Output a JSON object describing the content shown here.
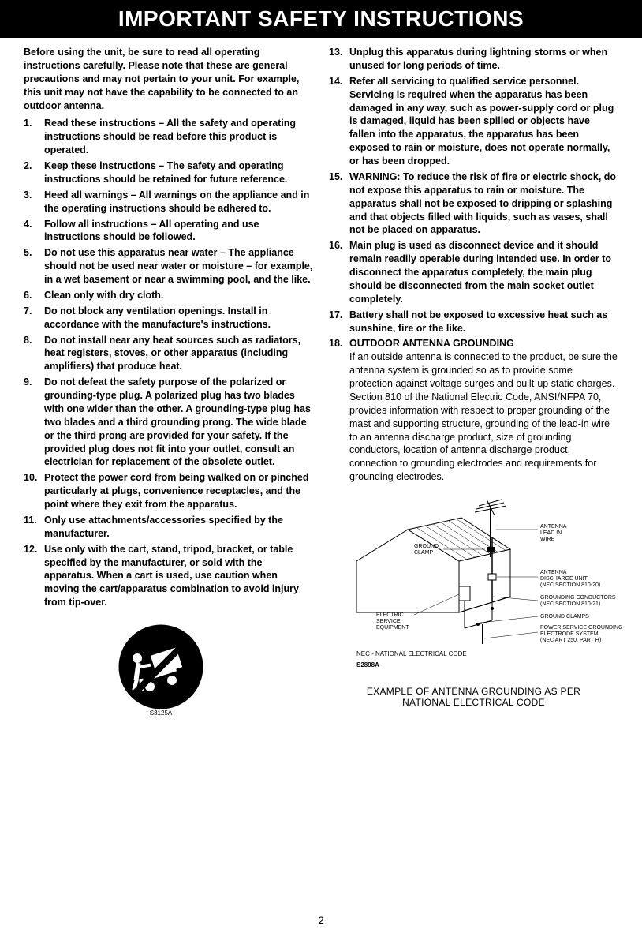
{
  "title": "IMPORTANT SAFETY INSTRUCTIONS",
  "intro": "Before using the unit, be sure to read all operating instructions carefully. Please note that these are general precautions and may not pertain to your unit.  For example, this unit may not have the capability to be connected to an outdoor antenna.",
  "left_items": [
    {
      "n": "1.",
      "t": "Read these instructions – All the safety and operating instructions should be read before this product is operated."
    },
    {
      "n": "2.",
      "t": "Keep these instructions – The safety and operating instructions should be retained for future reference."
    },
    {
      "n": "3.",
      "t": "Heed all warnings – All warnings on the appliance and in the operating instructions should be adhered to."
    },
    {
      "n": "4.",
      "t": "Follow all instructions – All operating and use instructions should be followed."
    },
    {
      "n": "5.",
      "t": "Do not use this apparatus near water – The appliance should not be used near water or moisture – for example, in a wet basement or near a swimming pool, and the like."
    },
    {
      "n": "6.",
      "t": "Clean only with dry cloth."
    },
    {
      "n": "7.",
      "t": "Do not block any ventilation openings. Install in accordance with the manufacture's instructions."
    },
    {
      "n": "8.",
      "t": "Do not install near any heat sources such as radiators, heat registers, stoves, or other apparatus (including amplifiers) that produce heat."
    },
    {
      "n": "9.",
      "t": "Do not defeat the safety purpose of the polarized or grounding-type plug. A polarized plug has two blades with one wider than the other. A grounding-type plug has two blades and a third grounding prong. The wide blade or the third prong are provided for your safety. If the provided plug does not fit into your outlet, consult an electrician for replacement of the obsolete outlet."
    },
    {
      "n": "10.",
      "t": "Protect the power cord from being walked on or pinched particularly at plugs, convenience receptacles, and the point where they exit from the apparatus."
    },
    {
      "n": "11.",
      "t": "Only use attachments/accessories specified by the manufacturer."
    },
    {
      "n": "12.",
      "t": "Use only with the cart, stand, tripod, bracket, or table specified by the manufacturer, or sold with the apparatus. When a cart  is used, use caution when moving the cart/apparatus combination to avoid injury from tip-over."
    }
  ],
  "right_items": [
    {
      "n": "13.",
      "t": "Unplug this apparatus during lightning storms or when unused for long periods of time."
    },
    {
      "n": "14.",
      "t": "Refer all servicing to qualified service personnel. Servicing is required when the apparatus has been damaged in any way, such as power-supply cord or plug is damaged, liquid has been spilled or objects have fallen into the apparatus, the apparatus has been exposed to rain or moisture, does not operate normally, or has been dropped."
    },
    {
      "n": "15.",
      "t": "WARNING:  To reduce the risk of fire or electric shock, do not expose this apparatus to rain or moisture. The apparatus shall not be exposed to dripping or splashing and that objects filled with liquids, such as vases, shall not be placed on apparatus."
    },
    {
      "n": "16.",
      "t": "Main plug is used as disconnect device and it should remain readily operable during intended use. In order to disconnect the apparatus completely, the main plug should be disconnected from the main socket outlet completely."
    },
    {
      "n": "17.",
      "t": "Battery shall not be exposed to excessive heat such as sunshine, fire or the like."
    }
  ],
  "item18": {
    "n": "18.",
    "lead": "OUTDOOR ANTENNA   GROUNDING",
    "body": "If an outside antenna is connected to the product, be sure the antenna system is grounded so as to provide some protection against voltage surges and built-up static charges. Section 810 of the National Electric Code, ANSI/NFPA 70, provides information with respect to proper grounding of the mast and supporting structure, grounding of the lead-in wire to an antenna discharge product, size of grounding conductors, location of antenna discharge product, connection to grounding electrodes and requirements for grounding electrodes."
  },
  "diagram_labels": {
    "antenna_lead": "ANTENNA\nLEAD IN\nWIRE",
    "ground_clamp": "GROUND\nCLAMP",
    "discharge_unit": "ANTENNA\nDISCHARGE UNIT\n(NEC SECTION 810-20)",
    "electric_service": "ELECTRIC\nSERVICE\nEQUIPMENT",
    "grounding_conductors": "GROUNDING CONDUCTORS\n(NEC SECTION 810-21)",
    "ground_clamps": "GROUND CLAMPS",
    "power_service": "POWER SERVICE GROUNDING\nELECTRODE SYSTEM\n(NEC ART 250, PART H)",
    "nec": "NEC - NATIONAL ELECTRICAL CODE",
    "figno": "S2898A"
  },
  "caption": "EXAMPLE OF ANTENNA GROUNDING AS PER\nNATIONAL ELECTRICAL CODE",
  "cart_label": "S3125A",
  "page_num": "2",
  "colors": {
    "title_bg": "#000000",
    "title_fg": "#ffffff",
    "body_fg": "#000000",
    "page_bg": "#ffffff"
  }
}
